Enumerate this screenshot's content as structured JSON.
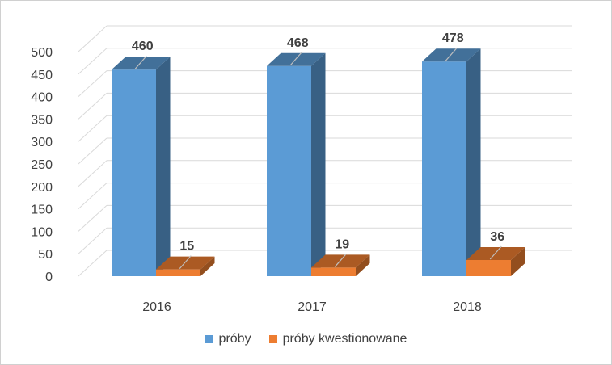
{
  "chart_data": {
    "type": "bar",
    "categories": [
      "2016",
      "2017",
      "2018"
    ],
    "series": [
      {
        "name": "próby",
        "values": [
          460,
          468,
          478
        ],
        "color": "#5B9BD5"
      },
      {
        "name": "próby kwestionowane",
        "values": [
          15,
          19,
          36
        ],
        "color": "#ED7D31"
      }
    ],
    "ylim": [
      0,
      500
    ],
    "yticks": [
      "0",
      "50",
      "100",
      "150",
      "200",
      "250",
      "300",
      "350",
      "400",
      "450",
      "500"
    ],
    "grid": true,
    "legend_position": "bottom",
    "style": "3d-column"
  }
}
